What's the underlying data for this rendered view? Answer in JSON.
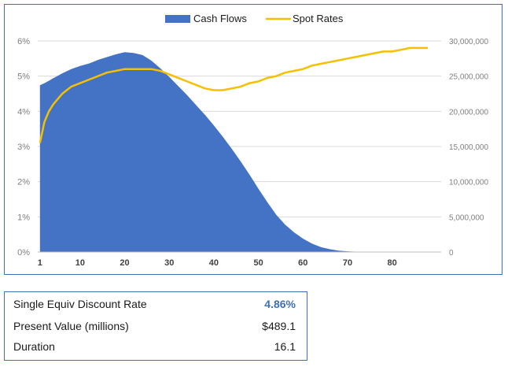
{
  "chart_data": {
    "type": "area",
    "legend_position": "top-center",
    "grid": true,
    "series": [
      {
        "name": "Cash Flows",
        "chart_type": "area",
        "axis": "secondary",
        "color": "#4472c4",
        "x": [
          1,
          2,
          3,
          4,
          5,
          6,
          8,
          10,
          12,
          14,
          16,
          18,
          20,
          22,
          24,
          26,
          28,
          30,
          32,
          34,
          36,
          38,
          40,
          42,
          44,
          46,
          48,
          50,
          52,
          54,
          56,
          58,
          60,
          62,
          64,
          66,
          68,
          70,
          72,
          74,
          76,
          78,
          80
        ],
        "values": [
          23700000,
          24000000,
          24350000,
          24700000,
          25050000,
          25400000,
          26000000,
          26450000,
          26800000,
          27300000,
          27700000,
          28100000,
          28400000,
          28300000,
          28000000,
          27200000,
          26100000,
          24900000,
          23600000,
          22300000,
          20900000,
          19500000,
          18000000,
          16400000,
          14700000,
          12900000,
          11000000,
          9000000,
          7100000,
          5300000,
          3900000,
          2800000,
          1900000,
          1200000,
          700000,
          400000,
          200000,
          100000,
          40000,
          0,
          0,
          0,
          0
        ]
      },
      {
        "name": "Spot Rates",
        "chart_type": "line",
        "axis": "primary",
        "color": "#f5c000",
        "x": [
          1,
          2,
          3,
          4,
          5,
          6,
          8,
          10,
          12,
          14,
          16,
          18,
          20,
          22,
          24,
          26,
          28,
          30,
          32,
          34,
          36,
          38,
          40,
          42,
          44,
          46,
          48,
          50,
          52,
          54,
          56,
          58,
          60,
          62,
          64,
          66,
          68,
          70,
          72,
          74,
          76,
          78,
          80,
          82,
          84,
          86,
          88
        ],
        "values": [
          3.1,
          3.7,
          4.0,
          4.2,
          4.35,
          4.5,
          4.7,
          4.8,
          4.9,
          5.0,
          5.1,
          5.15,
          5.2,
          5.2,
          5.2,
          5.2,
          5.15,
          5.05,
          4.95,
          4.85,
          4.75,
          4.65,
          4.6,
          4.6,
          4.65,
          4.7,
          4.8,
          4.85,
          4.95,
          5.0,
          5.1,
          5.15,
          5.2,
          5.3,
          5.35,
          5.4,
          5.45,
          5.5,
          5.55,
          5.6,
          5.65,
          5.7,
          5.7,
          5.75,
          5.8,
          5.8,
          5.8
        ]
      }
    ],
    "y_primary": {
      "ticks": [
        "0%",
        "1%",
        "2%",
        "3%",
        "4%",
        "5%",
        "6%"
      ],
      "ylim": [
        0,
        6
      ]
    },
    "y_secondary": {
      "ticks": [
        "0",
        "5,000,000",
        "10,000,000",
        "15,000,000",
        "20,000,000",
        "25,000,000",
        "30,000,000"
      ],
      "ylim": [
        0,
        30000000
      ]
    },
    "x_axis": {
      "ticks": [
        "1",
        "10",
        "20",
        "30",
        "40",
        "50",
        "60",
        "70",
        "80"
      ],
      "tick_values": [
        1,
        10,
        20,
        30,
        40,
        50,
        60,
        70,
        80
      ],
      "xlim": [
        0.5,
        91
      ]
    }
  },
  "summary": {
    "rows": [
      {
        "label": "Single Equiv Discount Rate",
        "value": "4.86%",
        "value_color": "#3f6fb4"
      },
      {
        "label": "Present Value (millions)",
        "value": "$489.1",
        "value_color": "#1a1a1a"
      },
      {
        "label": "Duration",
        "value": "16.1",
        "value_color": "#1a1a1a"
      }
    ]
  },
  "colors": {
    "border": "#3f6fb4",
    "grid": "#d9d9d9",
    "axis_text": "#7f7f7f"
  }
}
